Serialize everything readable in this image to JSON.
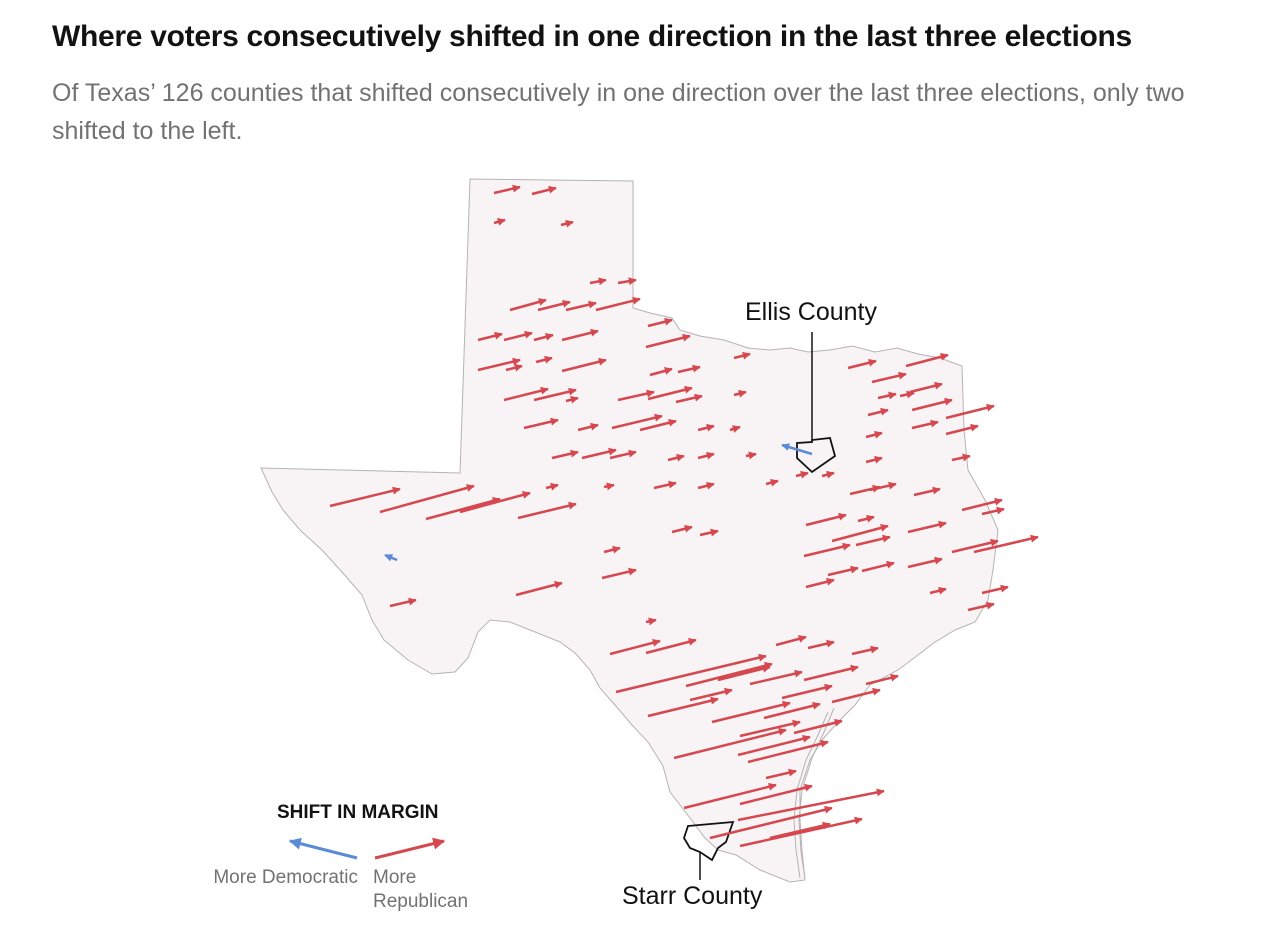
{
  "header": {
    "title": "Where voters consecutively shifted in one direction in the last three elections",
    "subtitle": "Of Texas’ 126 counties that shifted consecutively in one direction over the last three elections, only two shifted to the left."
  },
  "map": {
    "region": "Texas",
    "state_fill": "#f8f4f6",
    "border_color": "#b7b2b5"
  },
  "legend": {
    "title": "SHIFT IN MARGIN",
    "democratic_label": "More Democratic",
    "republican_label": "More Republican",
    "democratic_color": "#5b8ad6",
    "republican_color": "#d6484f"
  },
  "annotations": {
    "ellis": "Ellis County",
    "starr": "Starr County"
  },
  "shifts": {
    "counties_shifted_consecutively": 126,
    "shifted_left": 2,
    "shifted_right": 124
  }
}
